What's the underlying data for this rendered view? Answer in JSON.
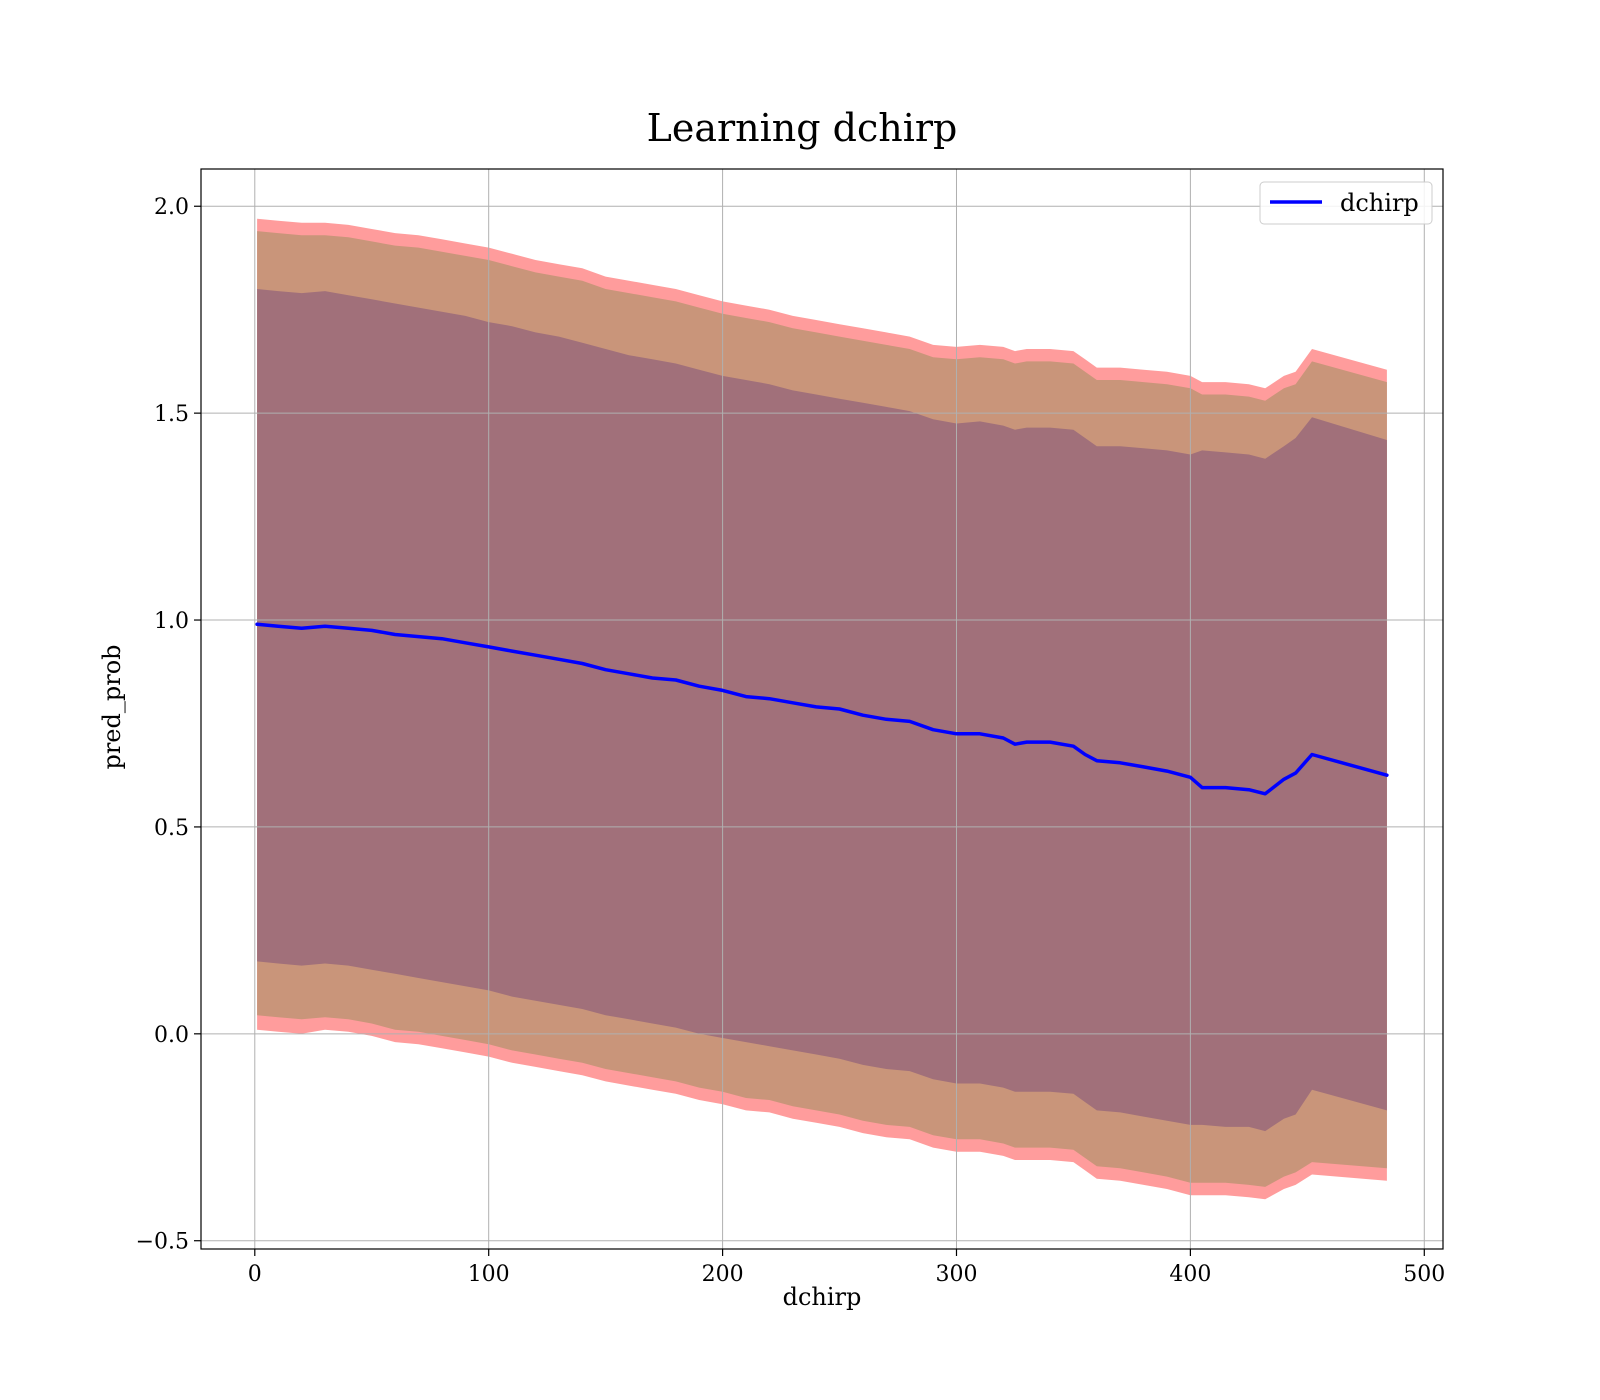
{
  "chart_data": {
    "type": "line",
    "title": "Learning dchirp",
    "xlabel": "dchirp",
    "ylabel": "pred_prob",
    "xlim": [
      -23,
      508
    ],
    "ylim": [
      -0.52,
      2.09
    ],
    "xticks": [
      0,
      100,
      200,
      300,
      400,
      500
    ],
    "yticks": [
      -0.5,
      0.0,
      0.5,
      1.0,
      1.5,
      2.0
    ],
    "xtick_labels": [
      "0",
      "100",
      "200",
      "300",
      "400",
      "500"
    ],
    "ytick_labels": [
      "−0.5",
      "0.0",
      "0.5",
      "1.0",
      "1.5",
      "2.0"
    ],
    "grid": true,
    "legend": {
      "position": "top-right",
      "entries": [
        "dchirp"
      ]
    },
    "series": [
      {
        "name": "dchirp",
        "color": "#0000ff",
        "x": [
          1,
          10,
          20,
          30,
          40,
          50,
          60,
          70,
          80,
          90,
          100,
          110,
          120,
          130,
          140,
          150,
          160,
          170,
          180,
          190,
          200,
          210,
          220,
          230,
          240,
          250,
          260,
          270,
          280,
          290,
          300,
          310,
          320,
          325,
          330,
          340,
          350,
          355,
          360,
          370,
          380,
          390,
          400,
          405,
          415,
          425,
          432,
          440,
          445,
          452,
          484
        ],
        "y": [
          0.99,
          0.985,
          0.98,
          0.985,
          0.98,
          0.975,
          0.965,
          0.96,
          0.955,
          0.945,
          0.935,
          0.925,
          0.915,
          0.905,
          0.895,
          0.88,
          0.87,
          0.86,
          0.855,
          0.84,
          0.83,
          0.815,
          0.81,
          0.8,
          0.79,
          0.785,
          0.77,
          0.76,
          0.755,
          0.735,
          0.725,
          0.725,
          0.715,
          0.7,
          0.705,
          0.705,
          0.695,
          0.675,
          0.66,
          0.655,
          0.645,
          0.635,
          0.62,
          0.595,
          0.595,
          0.59,
          0.58,
          0.615,
          0.63,
          0.675,
          0.625
        ]
      }
    ],
    "bands": [
      {
        "kind": "outer",
        "fill": "#ff9c9c",
        "upper": [
          1.97,
          1.965,
          1.96,
          1.96,
          1.955,
          1.945,
          1.935,
          1.93,
          1.92,
          1.91,
          1.9,
          1.885,
          1.87,
          1.86,
          1.85,
          1.83,
          1.82,
          1.81,
          1.8,
          1.785,
          1.77,
          1.76,
          1.75,
          1.735,
          1.725,
          1.715,
          1.705,
          1.695,
          1.685,
          1.665,
          1.66,
          1.665,
          1.66,
          1.65,
          1.655,
          1.655,
          1.65,
          1.63,
          1.61,
          1.61,
          1.605,
          1.6,
          1.59,
          1.575,
          1.575,
          1.57,
          1.56,
          1.59,
          1.6,
          1.655,
          1.605
        ],
        "lower": [
          0.01,
          0.005,
          0.0,
          0.01,
          0.005,
          -0.005,
          -0.02,
          -0.025,
          -0.035,
          -0.045,
          -0.055,
          -0.07,
          -0.08,
          -0.09,
          -0.1,
          -0.115,
          -0.125,
          -0.135,
          -0.145,
          -0.16,
          -0.17,
          -0.185,
          -0.19,
          -0.205,
          -0.215,
          -0.225,
          -0.24,
          -0.25,
          -0.255,
          -0.275,
          -0.285,
          -0.285,
          -0.295,
          -0.305,
          -0.305,
          -0.305,
          -0.31,
          -0.33,
          -0.35,
          -0.355,
          -0.365,
          -0.375,
          -0.39,
          -0.39,
          -0.39,
          -0.395,
          -0.4,
          -0.375,
          -0.365,
          -0.34,
          -0.355
        ]
      },
      {
        "kind": "middle",
        "fill": "#c9957a",
        "upper": [
          1.94,
          1.935,
          1.93,
          1.93,
          1.925,
          1.915,
          1.905,
          1.9,
          1.89,
          1.88,
          1.87,
          1.855,
          1.84,
          1.83,
          1.82,
          1.8,
          1.79,
          1.78,
          1.77,
          1.755,
          1.74,
          1.73,
          1.72,
          1.705,
          1.695,
          1.685,
          1.675,
          1.665,
          1.655,
          1.635,
          1.63,
          1.635,
          1.63,
          1.62,
          1.625,
          1.625,
          1.62,
          1.6,
          1.58,
          1.58,
          1.575,
          1.57,
          1.56,
          1.545,
          1.545,
          1.54,
          1.53,
          1.56,
          1.57,
          1.625,
          1.575
        ],
        "lower": [
          0.045,
          0.04,
          0.035,
          0.04,
          0.035,
          0.025,
          0.01,
          0.005,
          -0.005,
          -0.015,
          -0.025,
          -0.04,
          -0.05,
          -0.06,
          -0.07,
          -0.085,
          -0.095,
          -0.105,
          -0.115,
          -0.13,
          -0.14,
          -0.155,
          -0.16,
          -0.175,
          -0.185,
          -0.195,
          -0.21,
          -0.22,
          -0.225,
          -0.245,
          -0.255,
          -0.255,
          -0.265,
          -0.275,
          -0.275,
          -0.275,
          -0.28,
          -0.3,
          -0.32,
          -0.325,
          -0.335,
          -0.345,
          -0.36,
          -0.36,
          -0.36,
          -0.365,
          -0.37,
          -0.345,
          -0.335,
          -0.31,
          -0.325
        ]
      },
      {
        "kind": "inner",
        "fill": "#a1707a",
        "upper": [
          1.8,
          1.795,
          1.79,
          1.795,
          1.785,
          1.775,
          1.765,
          1.755,
          1.745,
          1.735,
          1.72,
          1.71,
          1.695,
          1.685,
          1.67,
          1.655,
          1.64,
          1.63,
          1.62,
          1.605,
          1.59,
          1.58,
          1.57,
          1.555,
          1.545,
          1.535,
          1.525,
          1.515,
          1.505,
          1.485,
          1.475,
          1.48,
          1.47,
          1.46,
          1.465,
          1.465,
          1.46,
          1.44,
          1.42,
          1.42,
          1.415,
          1.41,
          1.4,
          1.41,
          1.405,
          1.4,
          1.39,
          1.42,
          1.44,
          1.49,
          1.435
        ],
        "lower": [
          0.175,
          0.17,
          0.165,
          0.17,
          0.165,
          0.155,
          0.145,
          0.135,
          0.125,
          0.115,
          0.105,
          0.09,
          0.08,
          0.07,
          0.06,
          0.045,
          0.035,
          0.025,
          0.015,
          0.0,
          -0.01,
          -0.02,
          -0.03,
          -0.04,
          -0.05,
          -0.06,
          -0.075,
          -0.085,
          -0.09,
          -0.11,
          -0.12,
          -0.12,
          -0.13,
          -0.14,
          -0.14,
          -0.14,
          -0.145,
          -0.165,
          -0.185,
          -0.19,
          -0.2,
          -0.21,
          -0.22,
          -0.22,
          -0.225,
          -0.225,
          -0.235,
          -0.205,
          -0.195,
          -0.135,
          -0.185
        ]
      }
    ]
  }
}
